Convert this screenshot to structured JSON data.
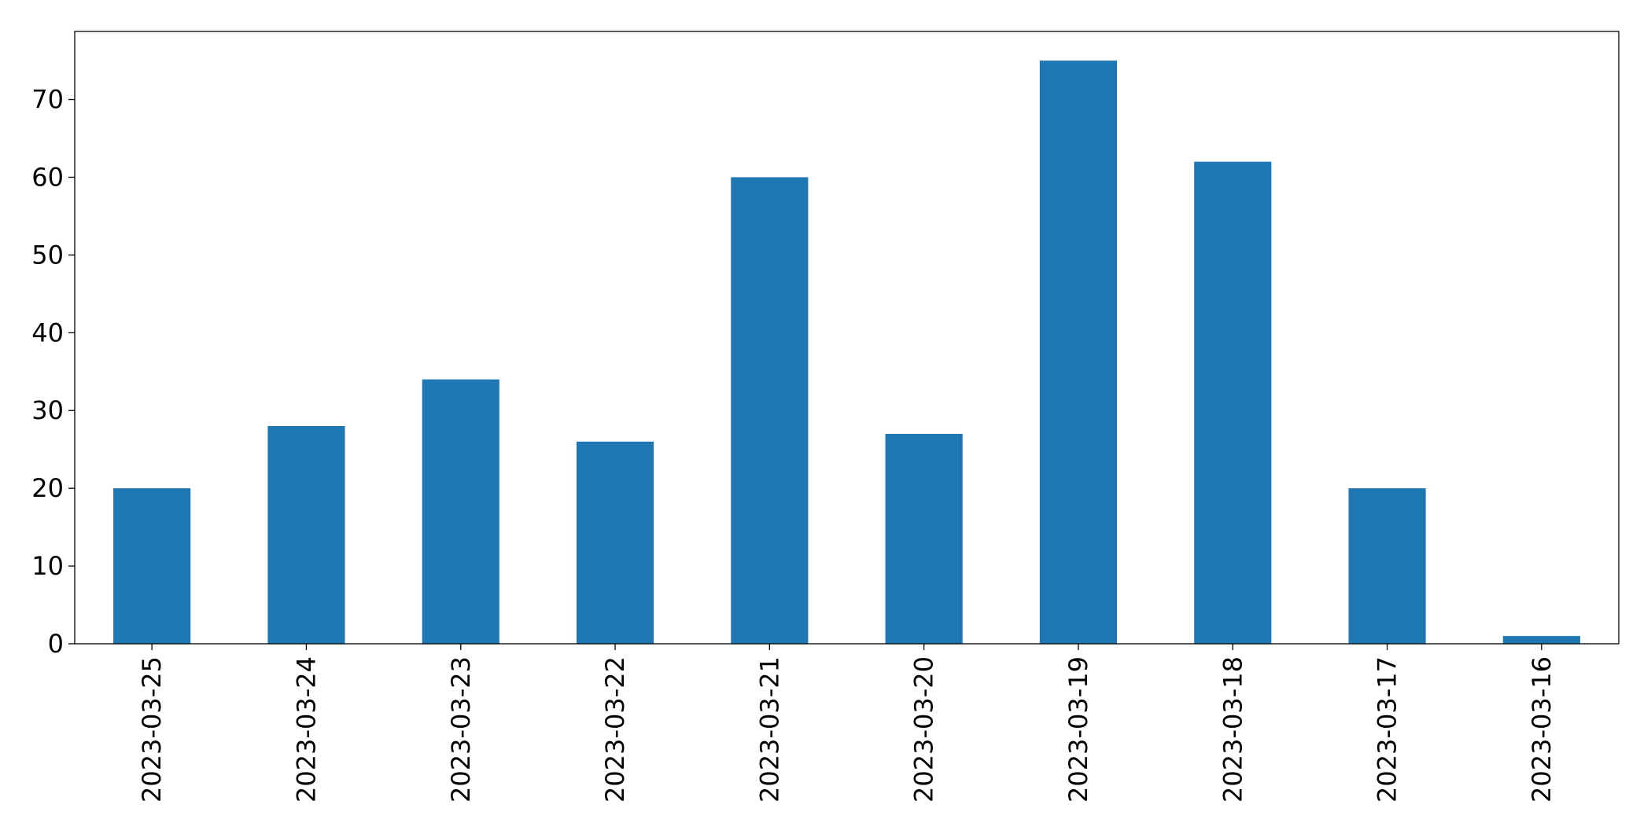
{
  "chart_data": {
    "type": "bar",
    "categories": [
      "2023-03-25",
      "2023-03-24",
      "2023-03-23",
      "2023-03-22",
      "2023-03-21",
      "2023-03-20",
      "2023-03-19",
      "2023-03-18",
      "2023-03-17",
      "2023-03-16"
    ],
    "values": [
      20,
      28,
      34,
      26,
      60,
      27,
      75,
      62,
      20,
      1
    ],
    "color": "#1f77b4",
    "ylim": [
      0,
      78.75
    ],
    "yticks": [
      0,
      10,
      20,
      30,
      40,
      50,
      60,
      70
    ],
    "grid": false
  }
}
